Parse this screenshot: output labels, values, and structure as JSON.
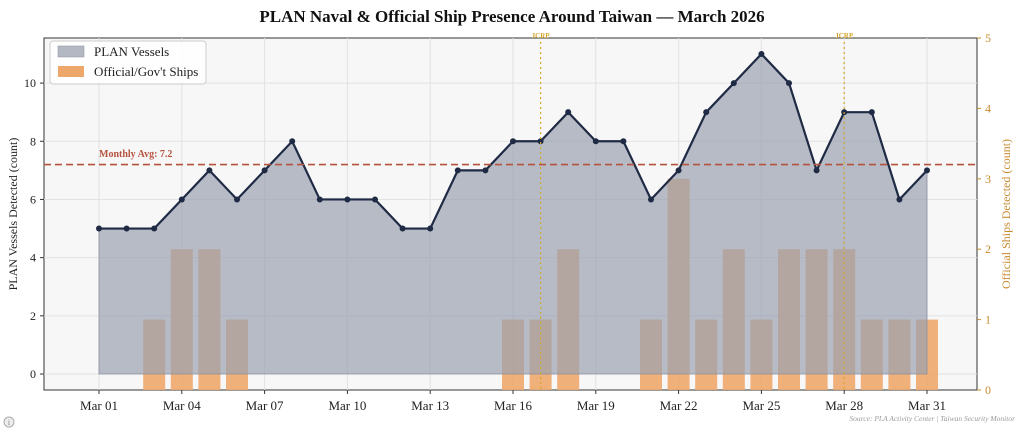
{
  "chart_data": {
    "type": "area+bar",
    "title": "PLAN Naval & Official Ship Presence Around Taiwan — March 2026",
    "x": [
      "Mar 01",
      "Mar 02",
      "Mar 03",
      "Mar 04",
      "Mar 05",
      "Mar 06",
      "Mar 07",
      "Mar 08",
      "Mar 09",
      "Mar 10",
      "Mar 11",
      "Mar 12",
      "Mar 13",
      "Mar 14",
      "Mar 15",
      "Mar 16",
      "Mar 17",
      "Mar 18",
      "Mar 19",
      "Mar 20",
      "Mar 21",
      "Mar 22",
      "Mar 23",
      "Mar 24",
      "Mar 25",
      "Mar 26",
      "Mar 27",
      "Mar 28",
      "Mar 29",
      "Mar 30",
      "Mar 31"
    ],
    "x_tick_labels": [
      "Mar 01",
      "Mar 04",
      "Mar 07",
      "Mar 10",
      "Mar 13",
      "Mar 16",
      "Mar 19",
      "Mar 22",
      "Mar 25",
      "Mar 28",
      "Mar 31"
    ],
    "series": [
      {
        "name": "PLAN Vessels",
        "axis": "left",
        "kind": "area-line",
        "color": "#1f2a44",
        "fill": "#b3b8c3",
        "values": [
          5,
          5,
          5,
          6,
          7,
          6,
          7,
          8,
          6,
          6,
          6,
          5,
          5,
          7,
          7,
          8,
          8,
          9,
          8,
          8,
          6,
          7,
          9,
          10,
          11,
          10,
          7,
          9,
          9,
          6,
          7
        ]
      },
      {
        "name": "Official/Gov't Ships",
        "axis": "right",
        "kind": "bar",
        "color": "#eda76a",
        "values": [
          0,
          0,
          1,
          2,
          2,
          1,
          0,
          0,
          0,
          0,
          0,
          0,
          0,
          0,
          0,
          1,
          1,
          2,
          0,
          0,
          1,
          3,
          1,
          2,
          1,
          2,
          2,
          2,
          1,
          1,
          1
        ]
      }
    ],
    "ylabel": "PLAN Vessels Detected (count)",
    "ylabel_right": "Official Ships Detected (count)",
    "ylim": [
      -0.55,
      11.55
    ],
    "ylim_right": [
      0,
      5
    ],
    "yticks": [
      "0",
      "2",
      "4",
      "6",
      "8",
      "10"
    ],
    "yticks_right": [
      "0",
      "1",
      "2",
      "3",
      "4",
      "5"
    ],
    "average": {
      "value": 7.2,
      "label": "Monthly Avg: 7.2",
      "color": "#b5533f"
    },
    "annotations": [
      {
        "x": "Mar 17",
        "label": "JCRP"
      },
      {
        "x": "Mar 28",
        "label": "JCRP"
      }
    ],
    "annotation_color": "#d4a72c",
    "legend_position": "top-left",
    "grid": true,
    "source": "Source: PLA Activity Center | Taiwan Security Monitor"
  },
  "info_icon": "info-icon"
}
